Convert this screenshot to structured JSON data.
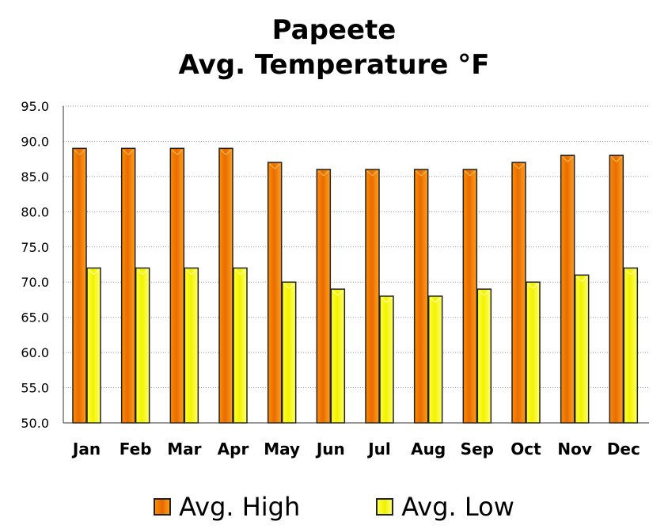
{
  "chart_data": {
    "type": "bar",
    "title_line1": "Papeete",
    "title_line2": "Avg. Temperature °F",
    "categories": [
      "Jan",
      "Feb",
      "Mar",
      "Apr",
      "May",
      "Jun",
      "Jul",
      "Aug",
      "Sep",
      "Oct",
      "Nov",
      "Dec"
    ],
    "series": [
      {
        "name": "Avg. High",
        "color": "#ff8000",
        "values": [
          89,
          89,
          89,
          89,
          87,
          86,
          86,
          86,
          86,
          87,
          88,
          88
        ]
      },
      {
        "name": "Avg. Low",
        "color": "#ffff00",
        "values": [
          72,
          72,
          72,
          72,
          70,
          69,
          68,
          68,
          69,
          70,
          71,
          72
        ]
      }
    ],
    "ylim": [
      50,
      95
    ],
    "yticks": [
      "50.0",
      "55.0",
      "60.0",
      "65.0",
      "70.0",
      "75.0",
      "80.0",
      "85.0",
      "90.0",
      "95.0"
    ],
    "grid": true,
    "legend_position": "bottom"
  }
}
